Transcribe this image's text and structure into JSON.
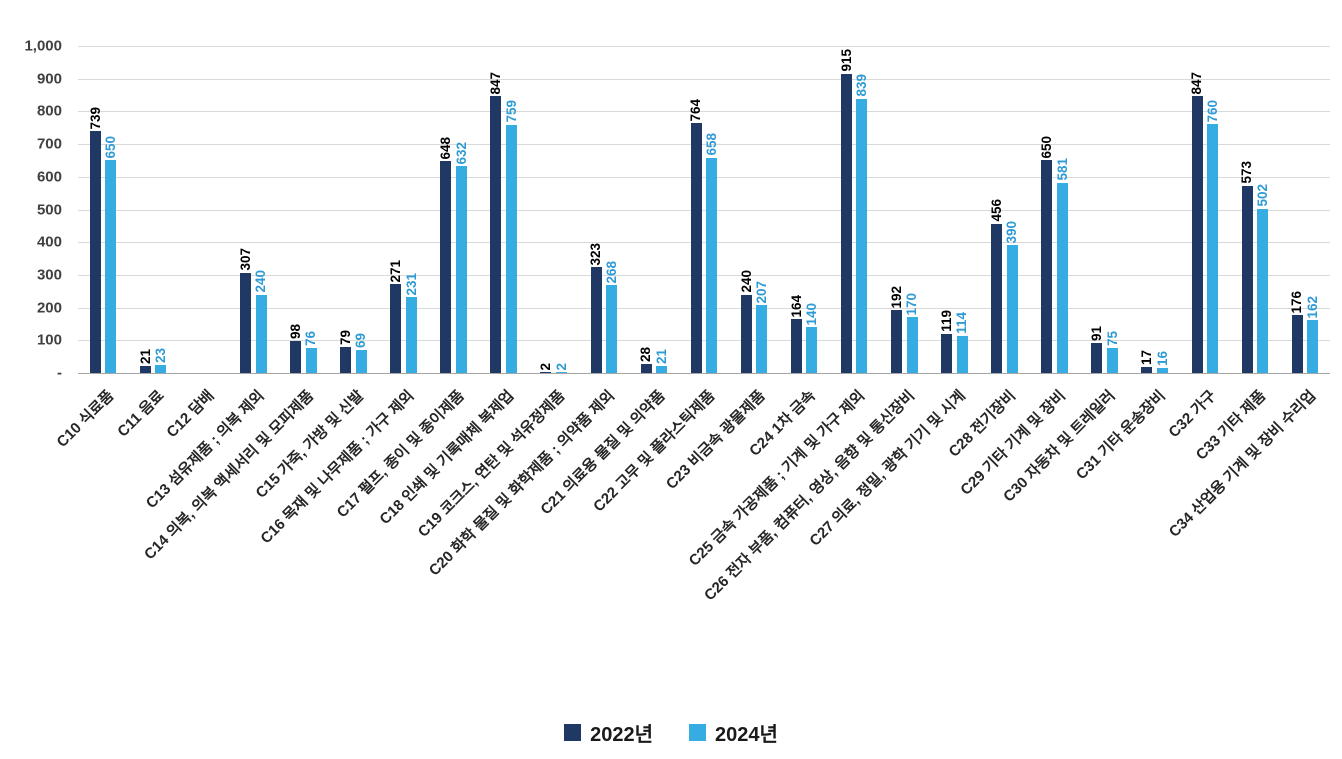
{
  "chart_data": {
    "type": "bar",
    "title": "",
    "xlabel": "",
    "ylabel": "",
    "ylim": [
      0,
      1000
    ],
    "grid": "horizontal",
    "legend_position": "bottom",
    "y_ticks": [
      "-",
      "100",
      "200",
      "300",
      "400",
      "500",
      "600",
      "700",
      "800",
      "900",
      "1,000"
    ],
    "categories": [
      "C10 식료품",
      "C11 음료",
      "C12 담배",
      "C13 섬유제품 ; 의복 제외",
      "C14 의복, 의복 액세서리 및 모피제품",
      "C15 가죽, 가방 및 신발",
      "C16 목재 및 나무제품 ; 가구 제외",
      "C17 펄프, 종이 및 종이제품",
      "C18 인쇄 및 기록매체 복제업",
      "C19 코크스, 연탄 및 석유정제품",
      "C20 화학 물질 및 화학제품 ; 의약품 제외",
      "C21 의료용 물질 및 의약품",
      "C22 고무 및 플라스틱제품",
      "C23 비금속 광물제품",
      "C24 1차 금속",
      "C25 금속 가공제품 ; 기계 및 가구 제외",
      "C26 전자 부품, 컴퓨터, 영상, 음향 및 통신장비",
      "C27 의료, 정밀, 광학 기기 및 시계",
      "C28 전기장비",
      "C29 기타 기계 및 장비",
      "C30 자동차 및 트레일러",
      "C31 기타 운송장비",
      "C32 가구",
      "C33 기타 제품",
      "C34 산업용 기계 및 장비 수리업"
    ],
    "series": [
      {
        "name": "2022년",
        "color": "#1F3864",
        "label_color": "#000000",
        "values": [
          739,
          21,
          null,
          307,
          98,
          79,
          271,
          648,
          847,
          2,
          323,
          28,
          764,
          240,
          164,
          915,
          192,
          119,
          456,
          650,
          91,
          17,
          847,
          573,
          176
        ]
      },
      {
        "name": "2024년",
        "color": "#35ACE2",
        "label_color": "#2E9BD5",
        "values": [
          650,
          23,
          null,
          240,
          76,
          69,
          231,
          632,
          759,
          2,
          268,
          21,
          658,
          207,
          140,
          839,
          170,
          114,
          390,
          581,
          75,
          16,
          760,
          502,
          162
        ]
      }
    ]
  }
}
